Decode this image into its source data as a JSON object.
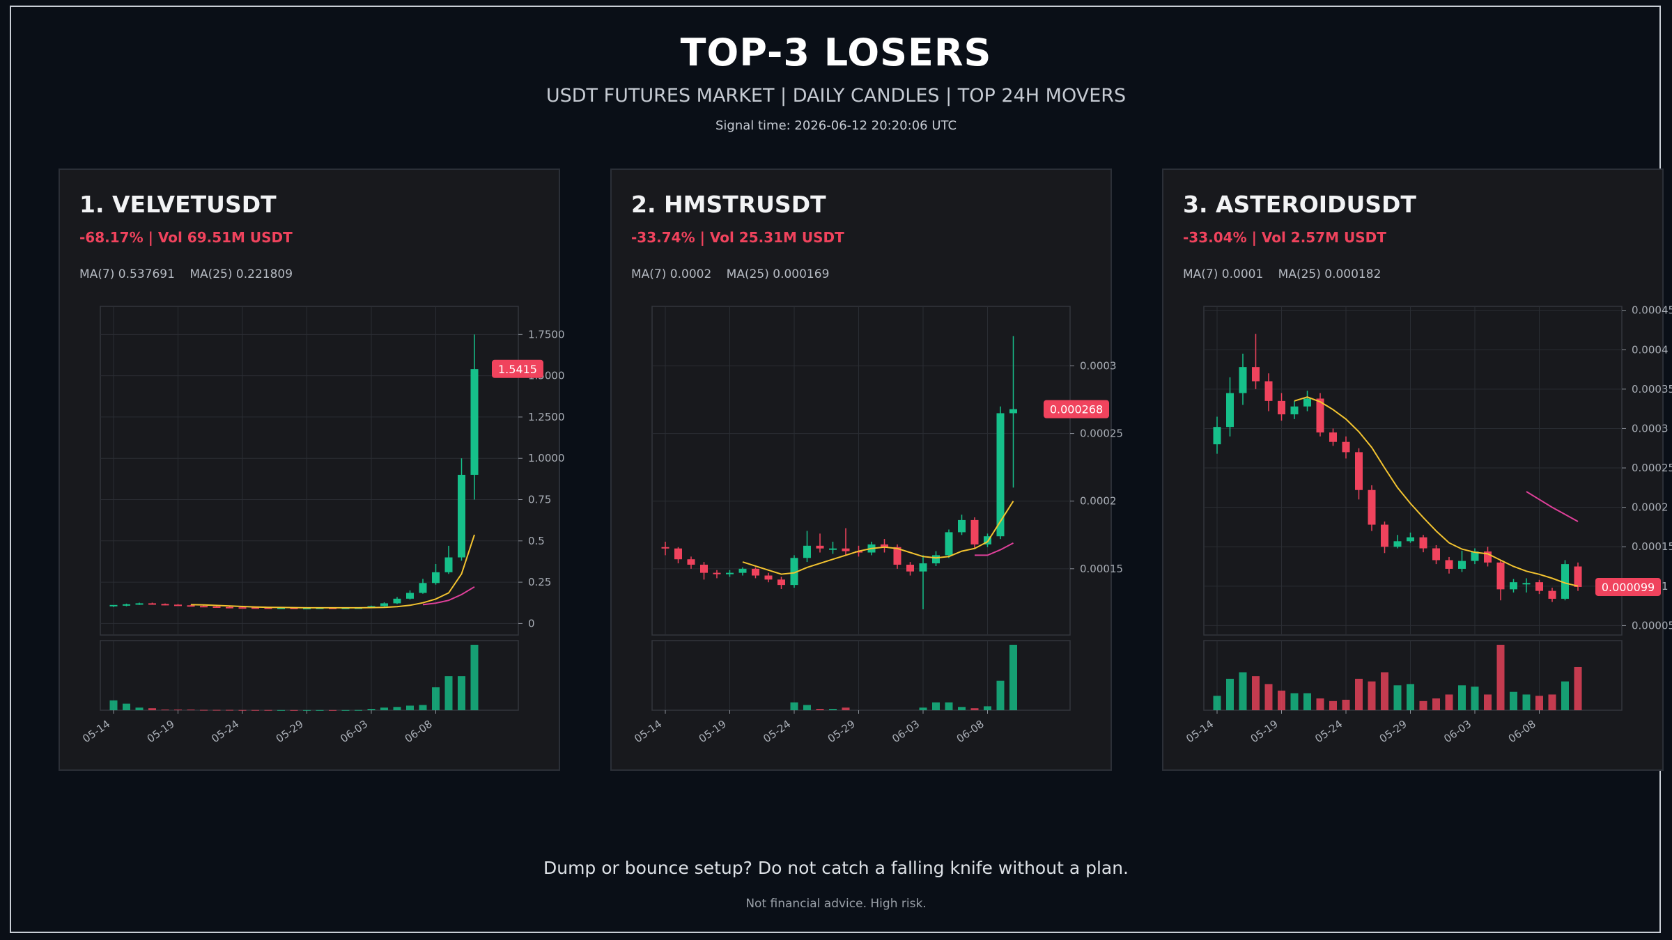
{
  "header": {
    "title": "TOP-3 LOSERS",
    "subtitle": "USDT FUTURES MARKET | DAILY CANDLES | TOP 24H MOVERS",
    "signal_time": "Signal time: 2026-06-12 20:20:06 UTC"
  },
  "footer": {
    "tagline": "Dump or bounce setup? Do not catch a falling knife without a plan.",
    "disclaimer": "Not financial advice. High risk."
  },
  "colors": {
    "up": "#16c08a",
    "down": "#f0435d",
    "ma7": "#f4c430",
    "ma25": "#e0409a",
    "grid": "#2a2d33",
    "panel": "#18191d"
  },
  "panels": [
    {
      "title": "1. VELVETUSDT",
      "change_line": "-68.17% | Vol 69.51M USDT",
      "ma7_label": "MA(7) 0.537691",
      "ma25_label": "MA(25) 0.221809"
    },
    {
      "title": "2. HMSTRUSDT",
      "change_line": "-33.74% | Vol 25.31M USDT",
      "ma7_label": "MA(7) 0.0002",
      "ma25_label": "MA(25) 0.000169"
    },
    {
      "title": "3. ASTEROIDUSDT",
      "change_line": "-33.04% | Vol 2.57M USDT",
      "ma7_label": "MA(7) 0.0001",
      "ma25_label": "MA(25) 0.000182"
    }
  ],
  "chart_data": [
    {
      "type": "candlestick",
      "symbol": "VELVETUSDT",
      "x_ticks": [
        "05-14",
        "05-19",
        "05-24",
        "05-29",
        "06-03",
        "06-08"
      ],
      "x_tick_index": [
        0,
        5,
        10,
        15,
        20,
        25
      ],
      "y_ticks": [
        0,
        0.25,
        0.5,
        0.75,
        1.0,
        1.25,
        1.5,
        1.75
      ],
      "y_tick_labels": [
        "0",
        "0.25",
        "0.5",
        "0.75",
        "1.0000",
        "1.2500",
        "1.5000",
        "1.7500"
      ],
      "ylim": [
        -0.07,
        1.92
      ],
      "last_price_label": "1.5415",
      "last_price": 1.5415,
      "candles": [
        [
          0.108,
          0.112,
          0.103,
          0.099
        ],
        [
          0.108,
          0.116,
          0.12,
          0.104
        ],
        [
          0.116,
          0.122,
          0.126,
          0.112
        ],
        [
          0.122,
          0.118,
          0.126,
          0.114
        ],
        [
          0.118,
          0.114,
          0.121,
          0.11
        ],
        [
          0.114,
          0.11,
          0.117,
          0.107
        ],
        [
          0.11,
          0.106,
          0.113,
          0.103
        ],
        [
          0.106,
          0.103,
          0.109,
          0.1
        ],
        [
          0.103,
          0.1,
          0.106,
          0.097
        ],
        [
          0.1,
          0.098,
          0.103,
          0.095
        ],
        [
          0.098,
          0.097,
          0.1,
          0.094
        ],
        [
          0.097,
          0.096,
          0.099,
          0.094
        ],
        [
          0.096,
          0.095,
          0.098,
          0.093
        ],
        [
          0.095,
          0.095,
          0.097,
          0.093
        ],
        [
          0.095,
          0.094,
          0.097,
          0.092
        ],
        [
          0.094,
          0.094,
          0.096,
          0.092
        ],
        [
          0.094,
          0.095,
          0.097,
          0.092
        ],
        [
          0.095,
          0.094,
          0.097,
          0.092
        ],
        [
          0.094,
          0.095,
          0.097,
          0.092
        ],
        [
          0.095,
          0.096,
          0.098,
          0.093
        ],
        [
          0.096,
          0.105,
          0.108,
          0.094
        ],
        [
          0.105,
          0.122,
          0.128,
          0.102
        ],
        [
          0.122,
          0.15,
          0.16,
          0.118
        ],
        [
          0.15,
          0.185,
          0.2,
          0.145
        ],
        [
          0.185,
          0.245,
          0.27,
          0.18
        ],
        [
          0.245,
          0.31,
          0.36,
          0.235
        ],
        [
          0.31,
          0.4,
          0.47,
          0.3
        ],
        [
          0.4,
          0.9,
          1.0,
          0.38
        ],
        [
          0.9,
          1.54,
          1.75,
          0.75
        ]
      ],
      "volume": [
        0.15,
        0.1,
        0.04,
        0.03,
        0.01,
        0.01,
        0.01,
        0.005,
        0.005,
        0.005,
        0.003,
        0.003,
        0.003,
        0.002,
        0.002,
        0.002,
        0.002,
        0.002,
        0.002,
        0.003,
        0.02,
        0.04,
        0.05,
        0.07,
        0.08,
        0.35,
        0.52,
        0.52,
        1.0
      ],
      "ma7": [
        null,
        null,
        null,
        null,
        null,
        null,
        0.114,
        0.112,
        0.109,
        0.106,
        0.103,
        0.1,
        0.098,
        0.097,
        0.096,
        0.095,
        0.095,
        0.095,
        0.095,
        0.095,
        0.096,
        0.098,
        0.102,
        0.11,
        0.125,
        0.148,
        0.185,
        0.3,
        0.537691
      ],
      "ma25": [
        null,
        null,
        null,
        null,
        null,
        null,
        null,
        null,
        null,
        null,
        null,
        null,
        null,
        null,
        null,
        null,
        null,
        null,
        null,
        null,
        null,
        null,
        null,
        null,
        0.114,
        0.123,
        0.14,
        0.175,
        0.221809
      ]
    },
    {
      "type": "candlestick",
      "symbol": "HMSTRUSDT",
      "x_ticks": [
        "05-14",
        "05-19",
        "05-24",
        "05-29",
        "06-03",
        "06-08"
      ],
      "x_tick_index": [
        0,
        5,
        10,
        15,
        20,
        25
      ],
      "y_ticks": [
        0.00015,
        0.0002,
        0.00025,
        0.0003
      ],
      "y_tick_labels": [
        "0.00015",
        "0.0002",
        "0.00025",
        "0.0003"
      ],
      "ylim": [
        0.000101,
        0.000344
      ],
      "last_price_label": "0.000268",
      "last_price": 0.000268,
      "candles": [
        [
          0.000166,
          0.000165,
          0.00017,
          0.00016
        ],
        [
          0.000165,
          0.000157,
          0.000166,
          0.000154
        ],
        [
          0.000157,
          0.000153,
          0.000159,
          0.00015
        ],
        [
          0.000153,
          0.000147,
          0.000155,
          0.000142
        ],
        [
          0.000147,
          0.000146,
          0.000149,
          0.000143
        ],
        [
          0.000146,
          0.000147,
          0.000149,
          0.000144
        ],
        [
          0.000147,
          0.00015,
          0.000151,
          0.000145
        ],
        [
          0.00015,
          0.000145,
          0.000151,
          0.000143
        ],
        [
          0.000145,
          0.000142,
          0.000147,
          0.00014
        ],
        [
          0.000142,
          0.000138,
          0.000144,
          0.000135
        ],
        [
          0.000138,
          0.000158,
          0.00016,
          0.000136
        ],
        [
          0.000158,
          0.000167,
          0.000178,
          0.000155
        ],
        [
          0.000167,
          0.000165,
          0.000176,
          0.000162
        ],
        [
          0.000165,
          0.000165,
          0.00017,
          0.000161
        ],
        [
          0.000165,
          0.000163,
          0.00018,
          0.00016
        ],
        [
          0.000163,
          0.000162,
          0.000167,
          0.000159
        ],
        [
          0.000162,
          0.000168,
          0.00017,
          0.00016
        ],
        [
          0.000168,
          0.000166,
          0.000172,
          0.000162
        ],
        [
          0.000166,
          0.000153,
          0.000168,
          0.00015
        ],
        [
          0.000153,
          0.000148,
          0.000155,
          0.000145
        ],
        [
          0.000148,
          0.000154,
          0.00016,
          0.00012
        ],
        [
          0.000154,
          0.00016,
          0.000163,
          0.000152
        ],
        [
          0.00016,
          0.000177,
          0.000179,
          0.000158
        ],
        [
          0.000177,
          0.000186,
          0.00019,
          0.000175
        ],
        [
          0.000186,
          0.000168,
          0.000188,
          0.000165
        ],
        [
          0.000168,
          0.000174,
          0.000176,
          0.000166
        ],
        [
          0.000174,
          0.000265,
          0.00027,
          0.000172
        ],
        [
          0.000265,
          0.000268,
          0.000322,
          0.00021
        ]
      ],
      "volume": [
        0,
        0,
        0,
        0,
        0,
        0,
        0,
        0,
        0,
        0,
        0.12,
        0.08,
        0.02,
        0.02,
        0.04,
        0,
        0,
        0,
        0,
        0,
        0.04,
        0.12,
        0.12,
        0.05,
        0.03,
        0.06,
        0.45,
        1.0
      ],
      "ma7": [
        null,
        null,
        null,
        null,
        null,
        null,
        0.000155,
        0.000152,
        0.000149,
        0.000146,
        0.000147,
        0.000151,
        0.000154,
        0.000157,
        0.00016,
        0.000163,
        0.000165,
        0.000166,
        0.000165,
        0.000162,
        0.000159,
        0.000158,
        0.000159,
        0.000163,
        0.000165,
        0.00017,
        0.000185,
        0.0002
      ],
      "ma25": [
        null,
        null,
        null,
        null,
        null,
        null,
        null,
        null,
        null,
        null,
        null,
        null,
        null,
        null,
        null,
        null,
        null,
        null,
        null,
        null,
        null,
        null,
        null,
        null,
        0.00016,
        0.00016,
        0.000164,
        0.000169
      ]
    },
    {
      "type": "candlestick",
      "symbol": "ASTEROIDUSDT",
      "x_ticks": [
        "05-14",
        "05-19",
        "05-24",
        "05-29",
        "06-03",
        "06-08"
      ],
      "x_tick_index": [
        0,
        5,
        10,
        15,
        20,
        25
      ],
      "y_ticks": [
        5e-05,
        0.0001,
        0.00015,
        0.0002,
        0.00025,
        0.0003,
        0.00035,
        0.0004,
        0.00045
      ],
      "y_tick_labels": [
        "0.00005",
        "0.0001",
        "0.00015",
        "0.0002",
        "0.00025",
        "0.0003",
        "0.00035",
        "0.0004",
        "0.00045"
      ],
      "ylim": [
        3.8e-05,
        0.000455
      ],
      "last_price_label": "0.000099",
      "last_price": 9.9e-05,
      "candles": [
        [
          0.00028,
          0.000302,
          0.000315,
          0.000268
        ],
        [
          0.000302,
          0.000345,
          0.000365,
          0.00029
        ],
        [
          0.000345,
          0.000378,
          0.000395,
          0.00033
        ],
        [
          0.000378,
          0.00036,
          0.00042,
          0.00035
        ],
        [
          0.00036,
          0.000335,
          0.00037,
          0.000322
        ],
        [
          0.000335,
          0.000318,
          0.000345,
          0.00031
        ],
        [
          0.000318,
          0.000328,
          0.000335,
          0.000312
        ],
        [
          0.000328,
          0.000338,
          0.000348,
          0.000322
        ],
        [
          0.000338,
          0.000295,
          0.000345,
          0.00029
        ],
        [
          0.000295,
          0.000283,
          0.0003,
          0.000278
        ],
        [
          0.000283,
          0.00027,
          0.00029,
          0.000262
        ],
        [
          0.00027,
          0.000222,
          0.000275,
          0.00021
        ],
        [
          0.000222,
          0.000178,
          0.000228,
          0.00017
        ],
        [
          0.000178,
          0.00015,
          0.000182,
          0.000142
        ],
        [
          0.00015,
          0.000157,
          0.000165,
          0.000148
        ],
        [
          0.000157,
          0.000162,
          0.000168,
          0.000155
        ],
        [
          0.000162,
          0.000148,
          0.000165,
          0.000143
        ],
        [
          0.000148,
          0.000133,
          0.000152,
          0.000128
        ],
        [
          0.000133,
          0.000122,
          0.000137,
          0.000116
        ],
        [
          0.000122,
          0.000132,
          0.000145,
          0.000118
        ],
        [
          0.000132,
          0.000144,
          0.000148,
          0.000128
        ],
        [
          0.000144,
          0.00013,
          0.00015,
          0.000125
        ],
        [
          0.00013,
          9.6e-05,
          0.000133,
          8.2e-05
        ],
        [
          9.6e-05,
          0.000105,
          0.000109,
          9.2e-05
        ],
        [
          0.000103,
          0.000104,
          0.00011,
          9.2e-05
        ],
        [
          0.000105,
          9.4e-05,
          0.000108,
          9e-05
        ],
        [
          9.4e-05,
          8.4e-05,
          9.8e-05,
          8e-05
        ],
        [
          8.4e-05,
          0.000128,
          0.000133,
          8.2e-05
        ],
        [
          0.000125,
          9.9e-05,
          0.00013,
          9.4e-05
        ]
      ],
      "volume": [
        0.22,
        0.48,
        0.58,
        0.52,
        0.4,
        0.3,
        0.26,
        0.26,
        0.18,
        0.14,
        0.16,
        0.48,
        0.44,
        0.58,
        0.38,
        0.4,
        0.14,
        0.18,
        0.24,
        0.38,
        0.36,
        0.24,
        1.0,
        0.28,
        0.24,
        0.22,
        0.24,
        0.44,
        0.66
      ],
      "ma7": [
        null,
        null,
        null,
        null,
        null,
        null,
        0.000335,
        0.00034,
        0.000334,
        0.000324,
        0.000312,
        0.000296,
        0.000276,
        0.00025,
        0.000225,
        0.000205,
        0.000187,
        0.00017,
        0.000155,
        0.000147,
        0.000143,
        0.000141,
        0.000133,
        0.000125,
        0.000119,
        0.000115,
        0.00011,
        0.000104,
        0.0001
      ],
      "ma25": [
        null,
        null,
        null,
        null,
        null,
        null,
        null,
        null,
        null,
        null,
        null,
        null,
        null,
        null,
        null,
        null,
        null,
        null,
        null,
        null,
        null,
        null,
        null,
        null,
        0.00022,
        0.00021,
        0.0002,
        0.000191,
        0.000182
      ]
    }
  ]
}
